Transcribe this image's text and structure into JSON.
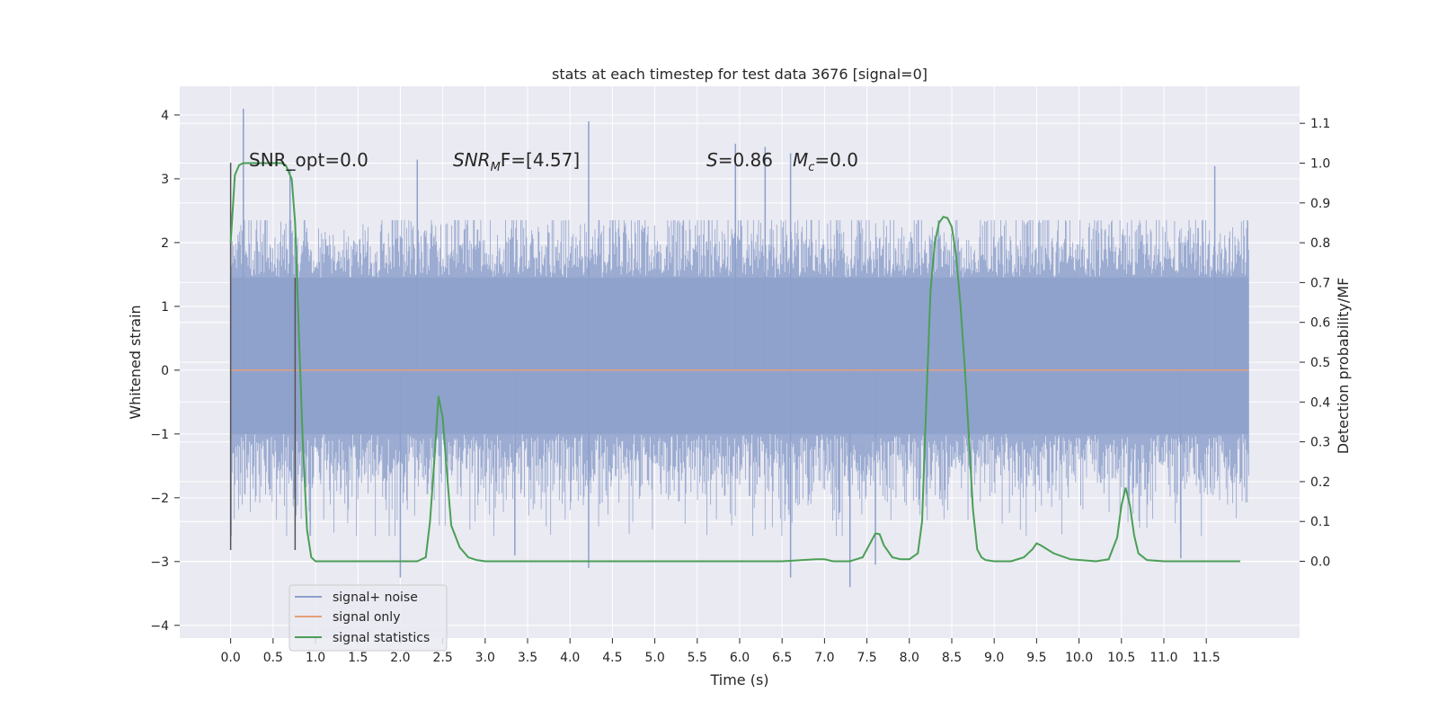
{
  "chart_data": {
    "type": "line",
    "title": "stats at each timestep for test data 3676 [signal=0]",
    "xlabel": "Time (s)",
    "ylabel": "Whitened strain",
    "y2label": "Detection probability/MF",
    "xlim": [
      -0.6,
      12.6
    ],
    "ylim": [
      -4.2,
      4.45
    ],
    "y2lim": [
      -0.193,
      1.193
    ],
    "xticks": [
      "0.0",
      "0.5",
      "1.0",
      "1.5",
      "2.0",
      "2.5",
      "3.0",
      "3.5",
      "4.0",
      "4.5",
      "5.0",
      "5.5",
      "6.0",
      "6.5",
      "7.0",
      "7.5",
      "8.0",
      "8.5",
      "9.0",
      "9.5",
      "10.0",
      "10.5",
      "11.0",
      "11.5"
    ],
    "yticks": [
      "4",
      "3",
      "2",
      "1",
      "0",
      "−1",
      "−2",
      "−3",
      "−4"
    ],
    "y2ticks": [
      "1.1",
      "1.0",
      "0.9",
      "0.8",
      "0.7",
      "0.6",
      "0.5",
      "0.4",
      "0.3",
      "0.2",
      "0.1",
      "0.0"
    ],
    "grid": true,
    "legend_position": "lower-left",
    "annotations": {
      "snr_opt": "SNR_opt=0.0",
      "snr_mf": "SNRₘF=[4.57]",
      "snr_mf_main": "SNR",
      "snr_mf_sub": "M",
      "snr_mf_rest": "F=[4.57]",
      "s_value": "S=0.86",
      "s_main": "S",
      "s_rest": "=0.86",
      "mc_main": "M",
      "mc_sub": "c",
      "mc_rest": "=0.0"
    },
    "colors": {
      "noise": "#8da0cb",
      "signal_only": "#e5a07a",
      "statistics": "#4a9f55",
      "marker": "#555555",
      "background": "#eaeaf2",
      "grid": "#ffffff"
    },
    "series": [
      {
        "name": "signal+ noise",
        "axis": "left",
        "style": "noise-band",
        "x_range": [
          0.0,
          12.0
        ],
        "band_core": [
          -1.0,
          1.45
        ],
        "spikes": [
          [
            0.15,
            4.1
          ],
          [
            4.22,
            3.9
          ],
          [
            2.2,
            3.3
          ],
          [
            11.6,
            3.2
          ],
          [
            6.3,
            3.5
          ],
          [
            5.95,
            3.55
          ],
          [
            6.6,
            3.4
          ],
          [
            0.7,
            3.15
          ],
          [
            2.0,
            -3.25
          ],
          [
            7.3,
            -3.4
          ],
          [
            6.6,
            -3.25
          ],
          [
            4.22,
            -3.1
          ],
          [
            7.6,
            -3.05
          ],
          [
            11.2,
            -2.95
          ],
          [
            3.35,
            -2.9
          ]
        ]
      },
      {
        "name": "signal only",
        "axis": "left",
        "x": [
          0.0,
          12.0
        ],
        "y": [
          0.0,
          0.0
        ]
      },
      {
        "name": "signal statistics",
        "axis": "right",
        "x": [
          0.0,
          0.05,
          0.1,
          0.15,
          0.2,
          0.3,
          0.4,
          0.5,
          0.6,
          0.65,
          0.72,
          0.76,
          0.8,
          0.85,
          0.9,
          0.95,
          1.0,
          1.2,
          1.5,
          2.0,
          2.2,
          2.3,
          2.35,
          2.4,
          2.45,
          2.5,
          2.55,
          2.6,
          2.7,
          2.8,
          2.9,
          3.0,
          3.2,
          4.0,
          5.0,
          6.0,
          6.5,
          6.9,
          7.0,
          7.1,
          7.3,
          7.45,
          7.55,
          7.6,
          7.65,
          7.7,
          7.8,
          7.9,
          8.0,
          8.1,
          8.15,
          8.2,
          8.25,
          8.3,
          8.35,
          8.4,
          8.45,
          8.5,
          8.55,
          8.6,
          8.65,
          8.7,
          8.75,
          8.8,
          8.85,
          8.9,
          9.0,
          9.2,
          9.35,
          9.45,
          9.5,
          9.55,
          9.7,
          9.9,
          10.2,
          10.35,
          10.45,
          10.5,
          10.55,
          10.6,
          10.65,
          10.7,
          10.8,
          11.0,
          11.5,
          11.9
        ],
        "y": [
          0.8,
          0.97,
          0.995,
          1.0,
          1.0,
          1.0,
          1.0,
          1.0,
          1.0,
          0.995,
          0.96,
          0.85,
          0.6,
          0.3,
          0.08,
          0.01,
          0.0,
          0.0,
          0.0,
          0.0,
          0.0,
          0.01,
          0.1,
          0.25,
          0.415,
          0.36,
          0.22,
          0.09,
          0.035,
          0.01,
          0.003,
          0.0,
          0.0,
          0.0,
          0.0,
          0.0,
          0.0,
          0.005,
          0.005,
          0.0,
          0.0,
          0.01,
          0.05,
          0.07,
          0.068,
          0.04,
          0.01,
          0.005,
          0.005,
          0.02,
          0.1,
          0.4,
          0.68,
          0.8,
          0.85,
          0.865,
          0.862,
          0.84,
          0.77,
          0.65,
          0.5,
          0.32,
          0.13,
          0.03,
          0.01,
          0.003,
          0.0,
          0.0,
          0.01,
          0.03,
          0.045,
          0.04,
          0.02,
          0.005,
          0.0,
          0.005,
          0.06,
          0.14,
          0.185,
          0.14,
          0.065,
          0.02,
          0.003,
          0.0,
          0.0,
          0.0
        ]
      }
    ],
    "vertical_markers": [
      {
        "x": 0.0,
        "y_from": -2.82,
        "y_to": 3.25
      },
      {
        "x": 0.76,
        "y_from": -2.82,
        "y_to": 1.45
      }
    ],
    "legend": [
      "signal+ noise",
      "signal only",
      "signal statistics"
    ]
  }
}
